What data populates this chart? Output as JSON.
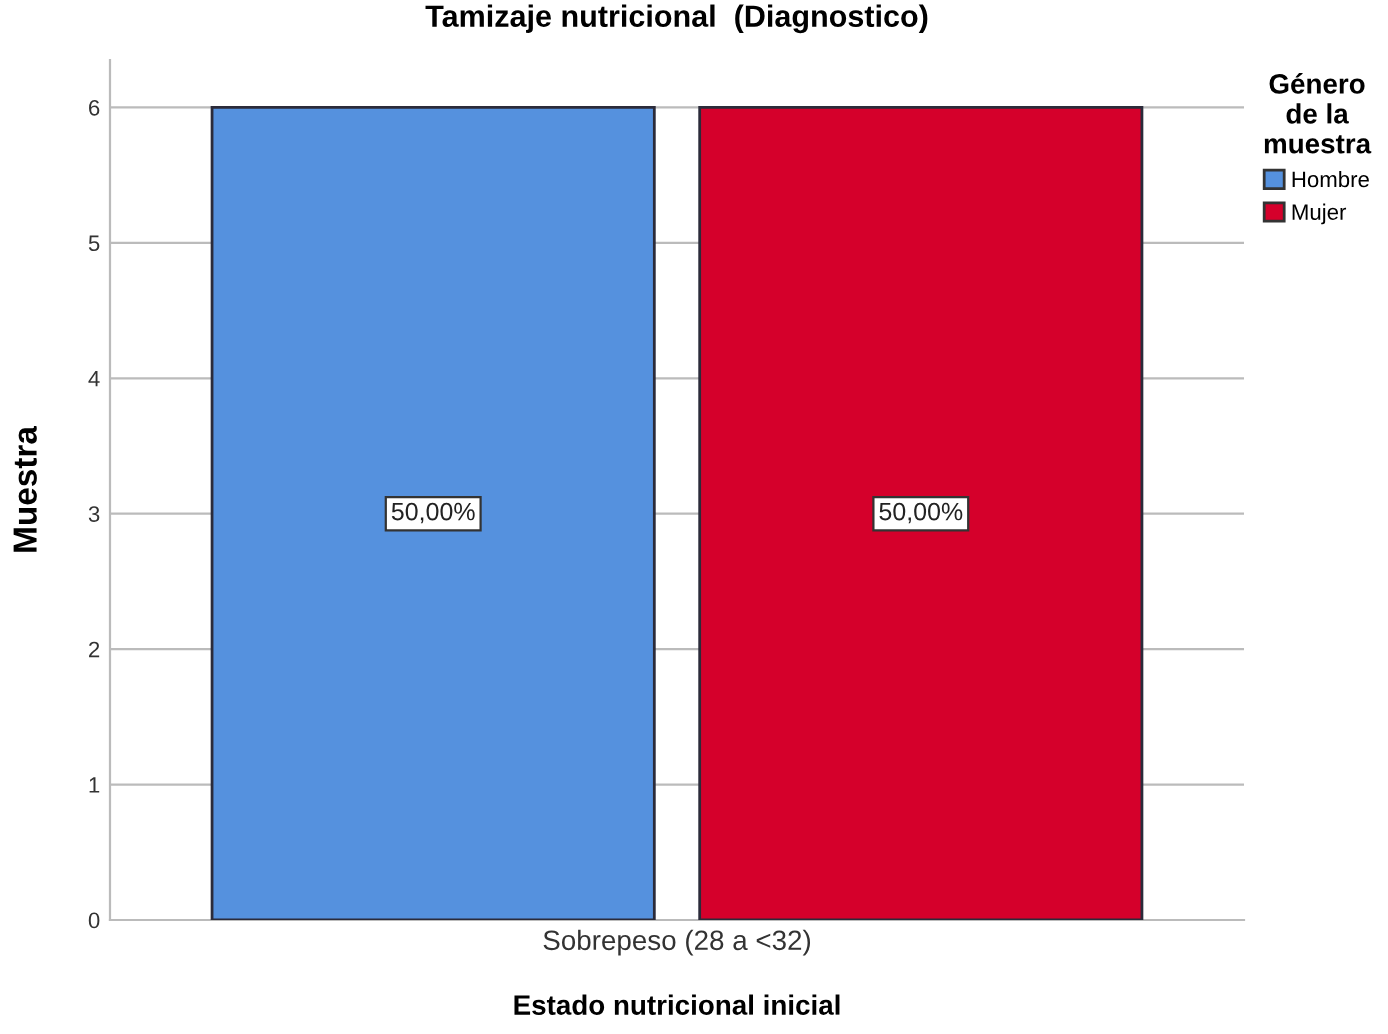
{
  "chart_data": {
    "type": "bar",
    "title": "Tamizaje nutricional  (Diagnostico)",
    "xlabel": "Estado nutricional inicial",
    "ylabel": "Muestra",
    "legend_title": "Género\nde la\nmuestra",
    "categories": [
      "Sobrepeso (28 a <32)"
    ],
    "series": [
      {
        "name": "Hombre",
        "color": "#5591de",
        "values": [
          6
        ]
      },
      {
        "name": "Mujer",
        "color": "#d5002b",
        "values": [
          6
        ]
      }
    ],
    "annotations": [
      "50,00%",
      "50,00%"
    ],
    "ylim": [
      0,
      6.35
    ],
    "yticks": [
      0,
      1,
      2,
      3,
      4,
      5,
      6
    ],
    "grid": "y",
    "legend": "top right"
  }
}
